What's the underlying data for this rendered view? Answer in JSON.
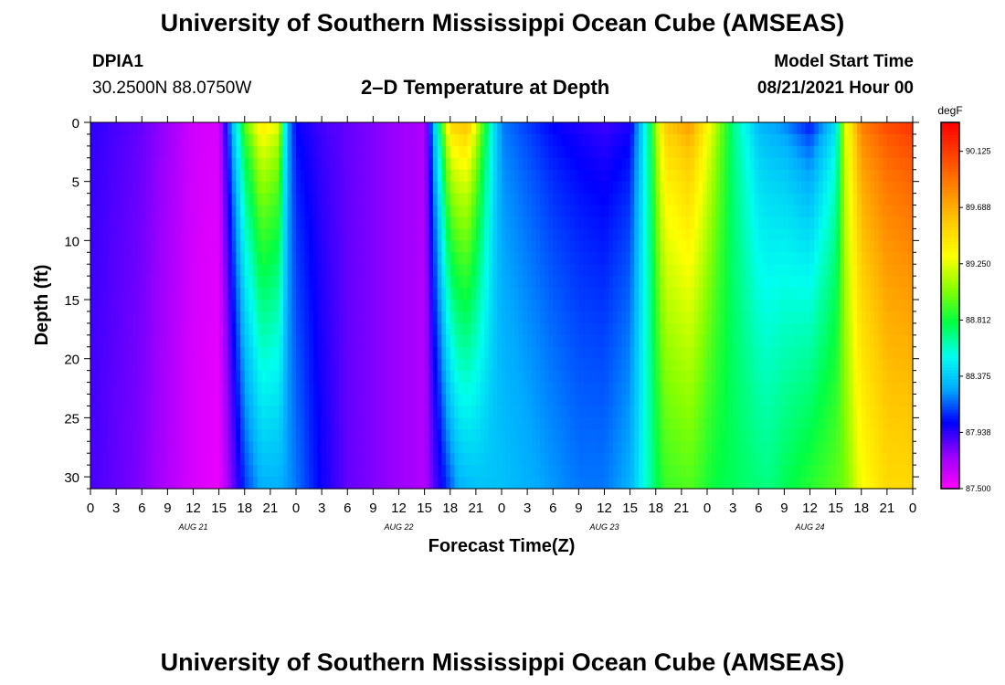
{
  "header": {
    "title": "University of Southern Mississippi Ocean Cube (AMSEAS)",
    "station": "DPIA1",
    "coords": "30.2500N  88.0750W",
    "plot_title": "2–D Temperature at Depth",
    "start_label": "Model Start Time",
    "start_value": "08/21/2021 Hour 00"
  },
  "footer": {
    "title": "University of Southern Mississippi Ocean Cube (AMSEAS)"
  },
  "chart_data": {
    "type": "heatmap",
    "title": "2–D Temperature at Depth",
    "xlabel": "Forecast Time(Z)",
    "ylabel": "Depth (ft)",
    "x_range_hours": [
      0,
      96
    ],
    "ylim": [
      31,
      0
    ],
    "y_ticks": [
      0,
      5,
      10,
      15,
      20,
      25,
      30
    ],
    "x_tick_labels": [
      "0",
      "3",
      "6",
      "9",
      "12",
      "15",
      "18",
      "21",
      "0",
      "3",
      "6",
      "9",
      "12",
      "15",
      "18",
      "21",
      "0",
      "3",
      "6",
      "9",
      "12",
      "15",
      "18",
      "21",
      "0",
      "3",
      "6",
      "9",
      "12",
      "15",
      "18",
      "21",
      "0"
    ],
    "date_labels": [
      {
        "hour": 12,
        "label": "AUG 21"
      },
      {
        "hour": 36,
        "label": "AUG 22"
      },
      {
        "hour": 60,
        "label": "AUG 23"
      },
      {
        "hour": 84,
        "label": "AUG 24"
      }
    ],
    "colorbar": {
      "unit": "degF",
      "min": 87.5,
      "max": 90.35,
      "ticks": [
        "90.125",
        "89.688",
        "89.250",
        "88.812",
        "88.375",
        "87.938",
        "87.500"
      ],
      "colors": [
        "#ff00ff",
        "#9900ff",
        "#0000ff",
        "#00aaff",
        "#00ffee",
        "#00ff44",
        "#88ff00",
        "#ffff00",
        "#ffcc00",
        "#ff8800",
        "#ff4400",
        "#ff0000"
      ]
    },
    "surface_temperature_by_hour": [
      {
        "hour": 0,
        "value": 87.95
      },
      {
        "hour": 3,
        "value": 87.9
      },
      {
        "hour": 6,
        "value": 87.85
      },
      {
        "hour": 9,
        "value": 87.75
      },
      {
        "hour": 12,
        "value": 87.62
      },
      {
        "hour": 15,
        "value": 87.6
      },
      {
        "hour": 16,
        "value": 88.1
      },
      {
        "hour": 18,
        "value": 89.0
      },
      {
        "hour": 20,
        "value": 89.5
      },
      {
        "hour": 22,
        "value": 89.3
      },
      {
        "hour": 23,
        "value": 88.3
      },
      {
        "hour": 24,
        "value": 88.0
      },
      {
        "hour": 27,
        "value": 87.9
      },
      {
        "hour": 30,
        "value": 87.85
      },
      {
        "hour": 33,
        "value": 87.8
      },
      {
        "hour": 36,
        "value": 87.75
      },
      {
        "hour": 39,
        "value": 87.7
      },
      {
        "hour": 40,
        "value": 88.3
      },
      {
        "hour": 42,
        "value": 89.6
      },
      {
        "hour": 44,
        "value": 89.7
      },
      {
        "hour": 47,
        "value": 88.5
      },
      {
        "hour": 48,
        "value": 88.2
      },
      {
        "hour": 51,
        "value": 88.1
      },
      {
        "hour": 54,
        "value": 88.0
      },
      {
        "hour": 57,
        "value": 87.95
      },
      {
        "hour": 60,
        "value": 87.9
      },
      {
        "hour": 63,
        "value": 87.95
      },
      {
        "hour": 65,
        "value": 88.6
      },
      {
        "hour": 67,
        "value": 89.6
      },
      {
        "hour": 70,
        "value": 89.8
      },
      {
        "hour": 72,
        "value": 89.4
      },
      {
        "hour": 75,
        "value": 88.7
      },
      {
        "hour": 78,
        "value": 88.3
      },
      {
        "hour": 81,
        "value": 88.2
      },
      {
        "hour": 84,
        "value": 88.0
      },
      {
        "hour": 87,
        "value": 88.4
      },
      {
        "hour": 88,
        "value": 89.2
      },
      {
        "hour": 90,
        "value": 89.9
      },
      {
        "hour": 93,
        "value": 90.1
      },
      {
        "hour": 96,
        "value": 90.2
      }
    ],
    "bottom_temperature_by_hour": [
      {
        "hour": 0,
        "value": 87.9
      },
      {
        "hour": 3,
        "value": 87.85
      },
      {
        "hour": 6,
        "value": 87.8
      },
      {
        "hour": 9,
        "value": 87.7
      },
      {
        "hour": 12,
        "value": 87.6
      },
      {
        "hour": 15,
        "value": 87.55
      },
      {
        "hour": 17,
        "value": 87.9
      },
      {
        "hour": 18,
        "value": 88.1
      },
      {
        "hour": 20,
        "value": 88.3
      },
      {
        "hour": 22,
        "value": 88.3
      },
      {
        "hour": 24,
        "value": 88.2
      },
      {
        "hour": 27,
        "value": 88.0
      },
      {
        "hour": 30,
        "value": 87.85
      },
      {
        "hour": 33,
        "value": 87.8
      },
      {
        "hour": 36,
        "value": 87.75
      },
      {
        "hour": 39,
        "value": 87.7
      },
      {
        "hour": 41,
        "value": 88.0
      },
      {
        "hour": 43,
        "value": 88.3
      },
      {
        "hour": 45,
        "value": 88.35
      },
      {
        "hour": 48,
        "value": 88.35
      },
      {
        "hour": 51,
        "value": 88.3
      },
      {
        "hour": 54,
        "value": 88.25
      },
      {
        "hour": 57,
        "value": 88.2
      },
      {
        "hour": 60,
        "value": 88.2
      },
      {
        "hour": 63,
        "value": 88.3
      },
      {
        "hour": 65,
        "value": 88.6
      },
      {
        "hour": 67,
        "value": 88.9
      },
      {
        "hour": 70,
        "value": 88.95
      },
      {
        "hour": 73,
        "value": 88.8
      },
      {
        "hour": 76,
        "value": 88.75
      },
      {
        "hour": 79,
        "value": 88.7
      },
      {
        "hour": 82,
        "value": 88.8
      },
      {
        "hour": 85,
        "value": 88.9
      },
      {
        "hour": 88,
        "value": 89.0
      },
      {
        "hour": 90,
        "value": 89.3
      },
      {
        "hour": 93,
        "value": 89.5
      },
      {
        "hour": 96,
        "value": 89.5
      }
    ]
  }
}
